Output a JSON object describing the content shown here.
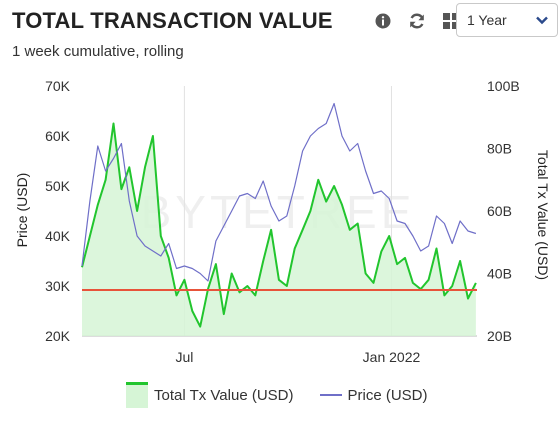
{
  "header": {
    "title": "TOTAL TRANSACTION VALUE",
    "subtitle": "1 week cumulative, rolling"
  },
  "toolbar": {
    "icons": [
      "info-icon",
      "refresh-icon",
      "grid-icon"
    ],
    "range_selected": "1 Year"
  },
  "watermark": "BYTETREE",
  "colors": {
    "tx_value": "#22c52e",
    "tx_fill": "#d6f5d6",
    "price": "#6f6fc8",
    "reference": "#e8533a"
  },
  "chart_data": {
    "type": "line",
    "x_range": [
      "2021-04-01",
      "2022-03-18"
    ],
    "x_ticks": [
      {
        "date": "2021-07-01",
        "label": "Jul"
      },
      {
        "date": "2022-01-01",
        "label": "Jan 2022"
      }
    ],
    "y_left": {
      "label": "Price (USD)",
      "min": 20000,
      "max": 70000,
      "ticks": [
        {
          "v": 20000,
          "label": "20K"
        },
        {
          "v": 30000,
          "label": "30K"
        },
        {
          "v": 40000,
          "label": "40K"
        },
        {
          "v": 50000,
          "label": "50K"
        },
        {
          "v": 60000,
          "label": "60K"
        },
        {
          "v": 70000,
          "label": "70K"
        }
      ]
    },
    "y_right": {
      "label": "Total Tx Value (USD)",
      "min": 20,
      "max": 100,
      "unit": "B",
      "ticks": [
        {
          "v": 20,
          "label": "20B"
        },
        {
          "v": 40,
          "label": "40B"
        },
        {
          "v": 60,
          "label": "60B"
        },
        {
          "v": 80,
          "label": "80B"
        },
        {
          "v": 100,
          "label": "100B"
        }
      ]
    },
    "reference_line": {
      "axis": "left",
      "value": 29200
    },
    "legend_position": "bottom",
    "series": [
      {
        "name": "Total Tx Value (USD)",
        "axis": "right",
        "style": "area",
        "x": [
          "2021-04-01",
          "2021-04-08",
          "2021-04-15",
          "2021-04-22",
          "2021-04-29",
          "2021-05-06",
          "2021-05-13",
          "2021-05-20",
          "2021-05-27",
          "2021-06-03",
          "2021-06-10",
          "2021-06-17",
          "2021-06-24",
          "2021-07-01",
          "2021-07-08",
          "2021-07-15",
          "2021-07-22",
          "2021-07-29",
          "2021-08-05",
          "2021-08-12",
          "2021-08-19",
          "2021-08-26",
          "2021-09-02",
          "2021-09-09",
          "2021-09-16",
          "2021-09-23",
          "2021-09-30",
          "2021-10-07",
          "2021-10-14",
          "2021-10-21",
          "2021-10-28",
          "2021-11-04",
          "2021-11-11",
          "2021-11-18",
          "2021-11-25",
          "2021-12-02",
          "2021-12-09",
          "2021-12-16",
          "2021-12-23",
          "2021-12-30",
          "2022-01-06",
          "2022-01-13",
          "2022-01-20",
          "2022-01-27",
          "2022-02-03",
          "2022-02-10",
          "2022-02-17",
          "2022-02-24",
          "2022-03-03",
          "2022-03-10",
          "2022-03-17"
        ],
        "values": [
          42,
          52,
          62,
          70,
          88,
          67,
          74,
          60,
          74,
          84,
          52,
          45,
          33,
          38,
          28,
          23,
          35,
          43,
          27,
          40,
          34,
          36,
          33,
          44,
          54,
          38,
          36,
          48,
          54,
          60,
          70,
          63,
          68,
          62,
          54,
          56,
          40,
          37,
          47,
          52,
          43,
          45,
          37,
          35,
          38,
          48,
          33,
          36,
          44,
          32,
          37
        ]
      },
      {
        "name": "Price (USD)",
        "axis": "left",
        "style": "line",
        "x": [
          "2021-04-01",
          "2021-04-08",
          "2021-04-15",
          "2021-04-22",
          "2021-04-29",
          "2021-05-06",
          "2021-05-13",
          "2021-05-20",
          "2021-05-27",
          "2021-06-03",
          "2021-06-10",
          "2021-06-17",
          "2021-06-24",
          "2021-07-01",
          "2021-07-08",
          "2021-07-15",
          "2021-07-22",
          "2021-07-29",
          "2021-08-05",
          "2021-08-12",
          "2021-08-19",
          "2021-08-26",
          "2021-09-02",
          "2021-09-09",
          "2021-09-16",
          "2021-09-23",
          "2021-09-30",
          "2021-10-07",
          "2021-10-14",
          "2021-10-21",
          "2021-10-28",
          "2021-11-04",
          "2021-11-11",
          "2021-11-18",
          "2021-11-25",
          "2021-12-02",
          "2021-12-09",
          "2021-12-16",
          "2021-12-23",
          "2021-12-30",
          "2022-01-06",
          "2022-01-13",
          "2022-01-20",
          "2022-01-27",
          "2022-02-03",
          "2022-02-10",
          "2022-02-17",
          "2022-02-24",
          "2022-03-03",
          "2022-03-10",
          "2022-03-17"
        ],
        "values": [
          34000,
          47000,
          58000,
          53000,
          55500,
          58500,
          47000,
          40000,
          38000,
          37000,
          36000,
          38500,
          33500,
          34000,
          33500,
          32500,
          31000,
          39000,
          42000,
          45000,
          48000,
          48500,
          47500,
          51000,
          46000,
          43000,
          44000,
          50000,
          57000,
          60000,
          61500,
          62500,
          66500,
          60000,
          57000,
          58500,
          53000,
          48500,
          49000,
          47500,
          43000,
          42500,
          40000,
          37000,
          38000,
          44000,
          42500,
          38500,
          43000,
          41000,
          40500
        ]
      }
    ]
  },
  "legend": {
    "items": [
      {
        "label": "Total Tx Value (USD)"
      },
      {
        "label": "Price (USD)"
      }
    ]
  }
}
